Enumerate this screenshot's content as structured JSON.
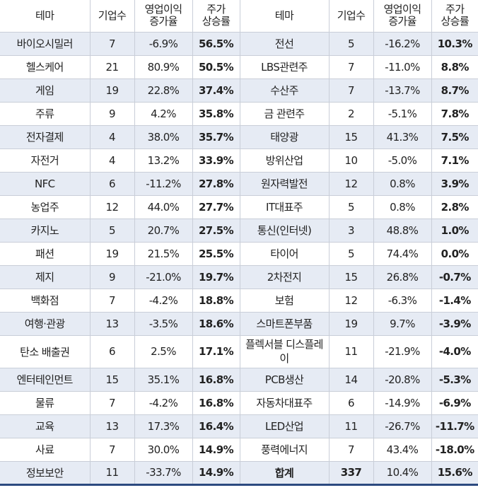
{
  "headers": {
    "left": {
      "theme": "테마",
      "count": "기업수",
      "op_l1": "영업이익",
      "op_l2": "증가율",
      "pr_l1": "주가",
      "pr_l2": "상승률"
    },
    "right": {
      "theme": "테마",
      "count": "기업수",
      "op_l1": "영업이익",
      "op_l2": "증가율",
      "pr_l1": "주가",
      "pr_l2": "상승률"
    }
  },
  "rows": [
    {
      "l_theme": "바이오시밀러",
      "l_count": "7",
      "l_op": "-6.9%",
      "l_price": "56.5%",
      "r_theme": "전선",
      "r_count": "5",
      "r_op": "-16.2%",
      "r_price": "10.3%"
    },
    {
      "l_theme": "헬스케어",
      "l_count": "21",
      "l_op": "80.9%",
      "l_price": "50.5%",
      "r_theme": "LBS관련주",
      "r_count": "7",
      "r_op": "-11.0%",
      "r_price": "8.8%"
    },
    {
      "l_theme": "게임",
      "l_count": "19",
      "l_op": "22.8%",
      "l_price": "37.4%",
      "r_theme": "수산주",
      "r_count": "7",
      "r_op": "-13.7%",
      "r_price": "8.7%"
    },
    {
      "l_theme": "주류",
      "l_count": "9",
      "l_op": "4.2%",
      "l_price": "35.8%",
      "r_theme": "금 관련주",
      "r_count": "2",
      "r_op": "-5.1%",
      "r_price": "7.8%"
    },
    {
      "l_theme": "전자결제",
      "l_count": "4",
      "l_op": "38.0%",
      "l_price": "35.7%",
      "r_theme": "태양광",
      "r_count": "15",
      "r_op": "41.3%",
      "r_price": "7.5%"
    },
    {
      "l_theme": "자전거",
      "l_count": "4",
      "l_op": "13.2%",
      "l_price": "33.9%",
      "r_theme": "방위산업",
      "r_count": "10",
      "r_op": "-5.0%",
      "r_price": "7.1%"
    },
    {
      "l_theme": "NFC",
      "l_count": "6",
      "l_op": "-11.2%",
      "l_price": "27.8%",
      "r_theme": "원자력발전",
      "r_count": "12",
      "r_op": "0.8%",
      "r_price": "3.9%"
    },
    {
      "l_theme": "농업주",
      "l_count": "12",
      "l_op": "44.0%",
      "l_price": "27.7%",
      "r_theme": "IT대표주",
      "r_count": "5",
      "r_op": "0.8%",
      "r_price": "2.8%"
    },
    {
      "l_theme": "카지노",
      "l_count": "5",
      "l_op": "20.7%",
      "l_price": "27.5%",
      "r_theme": "통신(인터넷)",
      "r_count": "3",
      "r_op": "48.8%",
      "r_price": "1.0%"
    },
    {
      "l_theme": "패션",
      "l_count": "19",
      "l_op": "21.5%",
      "l_price": "25.5%",
      "r_theme": "타이어",
      "r_count": "5",
      "r_op": "74.4%",
      "r_price": "0.0%"
    },
    {
      "l_theme": "제지",
      "l_count": "9",
      "l_op": "-21.0%",
      "l_price": "19.7%",
      "r_theme": "2차전지",
      "r_count": "15",
      "r_op": "26.8%",
      "r_price": "-0.7%"
    },
    {
      "l_theme": "백화점",
      "l_count": "7",
      "l_op": "-4.2%",
      "l_price": "18.8%",
      "r_theme": "보험",
      "r_count": "12",
      "r_op": "-6.3%",
      "r_price": "-1.4%"
    },
    {
      "l_theme": "여행·관광",
      "l_count": "13",
      "l_op": "-3.5%",
      "l_price": "18.6%",
      "r_theme": "스마트폰부품",
      "r_count": "19",
      "r_op": "9.7%",
      "r_price": "-3.9%"
    },
    {
      "l_theme": "탄소 배출권",
      "l_count": "6",
      "l_op": "2.5%",
      "l_price": "17.1%",
      "r_theme": "플렉서블 디스플레이",
      "r_count": "11",
      "r_op": "-21.9%",
      "r_price": "-4.0%"
    },
    {
      "l_theme": "엔터테인먼트",
      "l_count": "15",
      "l_op": "35.1%",
      "l_price": "16.8%",
      "r_theme": "PCB생산",
      "r_count": "14",
      "r_op": "-20.8%",
      "r_price": "-5.3%"
    },
    {
      "l_theme": "물류",
      "l_count": "7",
      "l_op": "-4.2%",
      "l_price": "16.8%",
      "r_theme": "자동차대표주",
      "r_count": "6",
      "r_op": "-14.9%",
      "r_price": "-6.9%"
    },
    {
      "l_theme": "교육",
      "l_count": "13",
      "l_op": "17.3%",
      "l_price": "16.4%",
      "r_theme": "LED산업",
      "r_count": "11",
      "r_op": "-26.7%",
      "r_price": "-11.7%"
    },
    {
      "l_theme": "사료",
      "l_count": "7",
      "l_op": "30.0%",
      "l_price": "14.9%",
      "r_theme": "풍력에너지",
      "r_count": "7",
      "r_op": "43.4%",
      "r_price": "-18.0%"
    },
    {
      "l_theme": "정보보안",
      "l_count": "11",
      "l_op": "-33.7%",
      "l_price": "14.9%",
      "r_theme": "합계",
      "r_count": "337",
      "r_op": "10.4%",
      "r_price": "15.6%"
    }
  ],
  "colors": {
    "header_rule": "#2c4a80",
    "stripe": "#e6ebf4",
    "grid": "#c9ced8"
  }
}
